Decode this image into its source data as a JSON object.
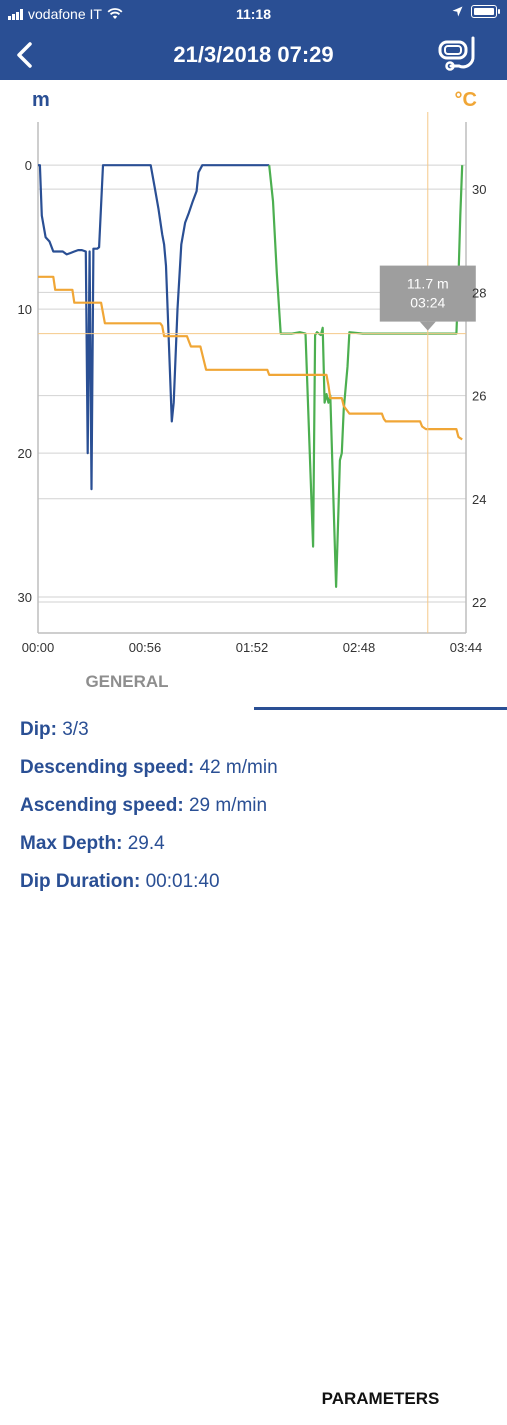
{
  "status_bar": {
    "carrier": "vodafone IT",
    "time": "11:18"
  },
  "header": {
    "title": "21/3/2018 07:29"
  },
  "icons": {
    "back": "back-chevron-icon",
    "dive_mask": "dive-mask-icon",
    "wifi": "wifi-icon",
    "location": "location-arrow-icon",
    "battery": "battery-icon"
  },
  "colors": {
    "brand": "#2a4f94",
    "depth_line_previous": "#2a4f94",
    "depth_line_current": "#4caf50",
    "temperature": "#f0a636",
    "selected_tab": "#2a4f94"
  },
  "chart_data": {
    "type": "line",
    "left_axis_unit": "m",
    "right_axis_unit": "°C",
    "x_ticks": [
      "00:00",
      "00:56",
      "01:52",
      "02:48",
      "03:44"
    ],
    "x_range_seconds": [
      0,
      224
    ],
    "depth_range_m": [
      -3,
      32.5
    ],
    "depth_ticks": [
      0,
      10,
      20,
      30
    ],
    "temp_range_c": [
      21.4,
      31.3
    ],
    "temp_ticks": [
      22,
      24,
      26,
      28,
      30
    ],
    "grid": true,
    "cursor": {
      "depth": "11.7 m",
      "time": "03:24",
      "t_seconds": 204,
      "depth_m": 11.7
    },
    "series": [
      {
        "role": "depth-previous",
        "color": "#2a4f94",
        "points": [
          [
            0,
            0
          ],
          [
            1,
            0
          ],
          [
            2,
            3.5
          ],
          [
            4,
            5
          ],
          [
            6,
            5.3
          ],
          [
            8,
            6
          ],
          [
            11,
            6
          ],
          [
            13,
            6
          ],
          [
            15,
            6.2
          ],
          [
            17,
            6.1
          ],
          [
            19,
            6
          ],
          [
            21,
            5.9
          ],
          [
            23,
            5.9
          ],
          [
            25,
            6
          ],
          [
            26,
            20
          ],
          [
            27,
            6
          ],
          [
            28,
            22.5
          ],
          [
            29,
            5.8
          ],
          [
            31,
            5.8
          ],
          [
            32,
            5.7
          ],
          [
            34,
            0
          ],
          [
            36,
            0
          ],
          [
            45,
            0
          ],
          [
            56,
            0
          ],
          [
            59,
            0
          ],
          [
            61,
            1.5
          ],
          [
            63,
            3
          ],
          [
            64,
            3.9
          ],
          [
            65,
            4.8
          ],
          [
            66,
            5.5
          ],
          [
            67,
            7
          ],
          [
            70,
            17.8
          ],
          [
            71,
            16.5
          ],
          [
            73,
            10
          ],
          [
            75,
            5.5
          ],
          [
            77,
            4
          ],
          [
            79,
            3.3
          ],
          [
            81,
            2.5
          ],
          [
            83,
            1.8
          ],
          [
            84,
            0.5
          ],
          [
            86,
            0
          ],
          [
            100,
            0
          ],
          [
            115,
            0
          ],
          [
            121,
            0
          ]
        ]
      },
      {
        "role": "depth-current",
        "color": "#4caf50",
        "points": [
          [
            121,
            0
          ],
          [
            123,
            2.5
          ],
          [
            125,
            7.5
          ],
          [
            127,
            11.7
          ],
          [
            133,
            11.7
          ],
          [
            137,
            11.6
          ],
          [
            140,
            11.7
          ],
          [
            144,
            26.5
          ],
          [
            145,
            11.8
          ],
          [
            146,
            11.6
          ],
          [
            148,
            11.8
          ],
          [
            149,
            11.3
          ],
          [
            150,
            16.5
          ],
          [
            151,
            15.9
          ],
          [
            152,
            16.5
          ],
          [
            153,
            16
          ],
          [
            155,
            25
          ],
          [
            156,
            29.3
          ],
          [
            157,
            25
          ],
          [
            158,
            20.5
          ],
          [
            159,
            20
          ],
          [
            160,
            17
          ],
          [
            162,
            14
          ],
          [
            163,
            11.6
          ],
          [
            170,
            11.7
          ],
          [
            178,
            11.7
          ],
          [
            204,
            11.7
          ],
          [
            219,
            11.7
          ],
          [
            220,
            8
          ],
          [
            221,
            3.5
          ],
          [
            222,
            0
          ]
        ]
      },
      {
        "role": "temperature",
        "color": "#f0a636",
        "points": [
          [
            0,
            28.3
          ],
          [
            8,
            28.3
          ],
          [
            9,
            28.05
          ],
          [
            18,
            28.05
          ],
          [
            19,
            27.8
          ],
          [
            33,
            27.8
          ],
          [
            34,
            27.6
          ],
          [
            35,
            27.4
          ],
          [
            43,
            27.4
          ],
          [
            64,
            27.4
          ],
          [
            65,
            27.35
          ],
          [
            66,
            27.15
          ],
          [
            78,
            27.15
          ],
          [
            79,
            27.05
          ],
          [
            80,
            26.95
          ],
          [
            85,
            26.95
          ],
          [
            88,
            26.5
          ],
          [
            118,
            26.5
          ],
          [
            120,
            26.5
          ],
          [
            121,
            26.4
          ],
          [
            124,
            26.4
          ],
          [
            151,
            26.4
          ],
          [
            152,
            26.2
          ],
          [
            153,
            25.95
          ],
          [
            155,
            25.95
          ],
          [
            159,
            25.95
          ],
          [
            160,
            25.8
          ],
          [
            161,
            25.75
          ],
          [
            163,
            25.65
          ],
          [
            165,
            25.65
          ],
          [
            180,
            25.65
          ],
          [
            181,
            25.55
          ],
          [
            182,
            25.5
          ],
          [
            183,
            25.5
          ],
          [
            200,
            25.5
          ],
          [
            201,
            25.4
          ],
          [
            203,
            25.35
          ],
          [
            219,
            25.35
          ],
          [
            220,
            25.2
          ],
          [
            222,
            25.15
          ]
        ]
      }
    ]
  },
  "tabs": [
    {
      "label": "GENERAL"
    },
    {
      "label": "PARAMETERS"
    }
  ],
  "parameters": [
    {
      "label": "Dip:",
      "value": "3/3"
    },
    {
      "label": "Descending speed:",
      "value": "42 m/min"
    },
    {
      "label": "Ascending speed:",
      "value": "29 m/min"
    },
    {
      "label": "Max Depth:",
      "value": "29.4"
    },
    {
      "label": "Dip Duration:",
      "value": "00:01:40"
    }
  ]
}
